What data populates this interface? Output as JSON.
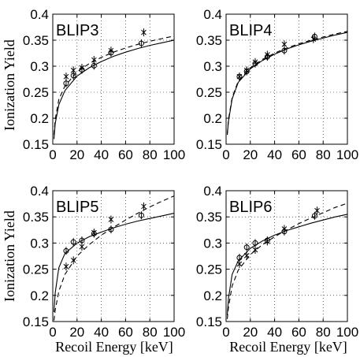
{
  "figure": {
    "ylabel": "Ionization Yield",
    "xlabel": "Recoil Energy [keV]"
  },
  "chart_data": [
    {
      "type": "scatter",
      "title": "BLIP3",
      "xlim": [
        0,
        100
      ],
      "ylim": [
        0.15,
        0.4
      ],
      "xticks": [
        "0",
        "20",
        "40",
        "60",
        "80",
        "100"
      ],
      "yticks": [
        "0.15",
        "0.2",
        "0.25",
        "0.3",
        "0.35",
        "0.4"
      ],
      "xlabel": "",
      "ylabel": "Ionization Yield",
      "grid": true,
      "series": [
        {
          "marker": "circle",
          "points": [
            [
              11,
              0.267
            ],
            [
              17,
              0.282
            ],
            [
              24,
              0.293
            ],
            [
              34,
              0.301
            ],
            [
              48,
              0.326
            ],
            [
              73,
              0.344
            ]
          ]
        },
        {
          "marker": "x",
          "points": [
            [
              11,
              0.28
            ],
            [
              17,
              0.292
            ],
            [
              24,
              0.297
            ],
            [
              34,
              0.312
            ],
            [
              48,
              0.33
            ],
            [
              75,
              0.365
            ]
          ]
        },
        {
          "line": "solid",
          "fit": [
            [
              1,
              0.16
            ],
            [
              2,
              0.19
            ],
            [
              5,
              0.226
            ],
            [
              10,
              0.253
            ],
            [
              20,
              0.281
            ],
            [
              30,
              0.297
            ],
            [
              40,
              0.309
            ],
            [
              50,
              0.319
            ],
            [
              60,
              0.327
            ],
            [
              70,
              0.334
            ],
            [
              80,
              0.34
            ],
            [
              90,
              0.345
            ],
            [
              100,
              0.35
            ]
          ]
        },
        {
          "line": "dashed",
          "fit": [
            [
              1,
              0.168
            ],
            [
              2,
              0.198
            ],
            [
              5,
              0.236
            ],
            [
              10,
              0.262
            ],
            [
              20,
              0.289
            ],
            [
              30,
              0.305
            ],
            [
              40,
              0.317
            ],
            [
              50,
              0.327
            ],
            [
              60,
              0.335
            ],
            [
              70,
              0.342
            ],
            [
              80,
              0.348
            ],
            [
              90,
              0.353
            ],
            [
              100,
              0.358
            ]
          ]
        }
      ]
    },
    {
      "type": "scatter",
      "title": "BLIP4",
      "xlim": [
        0,
        100
      ],
      "ylim": [
        0.15,
        0.4
      ],
      "xticks": [
        "0",
        "20",
        "40",
        "60",
        "80",
        "100"
      ],
      "yticks": [
        "0.15",
        "0.2",
        "0.25",
        "0.3",
        "0.35",
        "0.4"
      ],
      "xlabel": "",
      "ylabel": "",
      "grid": true,
      "series": [
        {
          "marker": "circle",
          "points": [
            [
              11,
              0.28
            ],
            [
              17,
              0.29
            ],
            [
              24,
              0.305
            ],
            [
              34,
              0.318
            ],
            [
              48,
              0.33
            ],
            [
              73,
              0.357
            ]
          ]
        },
        {
          "marker": "x",
          "points": [
            [
              11,
              0.28
            ],
            [
              17,
              0.292
            ],
            [
              24,
              0.308
            ],
            [
              34,
              0.322
            ],
            [
              48,
              0.342
            ],
            [
              72,
              0.352
            ]
          ]
        },
        {
          "line": "solid",
          "fit": [
            [
              1,
              0.168
            ],
            [
              2,
              0.195
            ],
            [
              5,
              0.237
            ],
            [
              10,
              0.269
            ],
            [
              20,
              0.295
            ],
            [
              30,
              0.311
            ],
            [
              40,
              0.323
            ],
            [
              50,
              0.333
            ],
            [
              60,
              0.341
            ],
            [
              70,
              0.348
            ],
            [
              80,
              0.354
            ],
            [
              90,
              0.36
            ],
            [
              100,
              0.365
            ]
          ]
        },
        {
          "line": "dashed",
          "fit": [
            [
              1,
              0.17
            ],
            [
              2,
              0.198
            ],
            [
              5,
              0.24
            ],
            [
              10,
              0.271
            ],
            [
              20,
              0.297
            ],
            [
              30,
              0.313
            ],
            [
              40,
              0.325
            ],
            [
              50,
              0.335
            ],
            [
              60,
              0.343
            ],
            [
              70,
              0.35
            ],
            [
              80,
              0.356
            ],
            [
              90,
              0.362
            ],
            [
              100,
              0.367
            ]
          ]
        }
      ]
    },
    {
      "type": "scatter",
      "title": "BLIP5",
      "xlim": [
        0,
        100
      ],
      "ylim": [
        0.15,
        0.4
      ],
      "xticks": [
        "0",
        "20",
        "40",
        "60",
        "80",
        "100"
      ],
      "yticks": [
        "0.15",
        "0.2",
        "0.25",
        "0.3",
        "0.35",
        "0.4"
      ],
      "xlabel": "Recoil Energy [keV]",
      "ylabel": "Ionization Yield",
      "grid": true,
      "series": [
        {
          "marker": "circle",
          "points": [
            [
              11,
              0.285
            ],
            [
              17,
              0.302
            ],
            [
              24,
              0.305
            ],
            [
              34,
              0.318
            ],
            [
              48,
              0.326
            ],
            [
              73,
              0.353
            ]
          ]
        },
        {
          "marker": "x",
          "points": [
            [
              11,
              0.255
            ],
            [
              17,
              0.267
            ],
            [
              24,
              0.293
            ],
            [
              34,
              0.32
            ],
            [
              48,
              0.345
            ],
            [
              75,
              0.37
            ]
          ]
        },
        {
          "line": "solid",
          "fit": [
            [
              1,
              0.168
            ],
            [
              2,
              0.205
            ],
            [
              5,
              0.253
            ],
            [
              10,
              0.28
            ],
            [
              20,
              0.3
            ],
            [
              30,
              0.312
            ],
            [
              40,
              0.321
            ],
            [
              50,
              0.329
            ],
            [
              60,
              0.336
            ],
            [
              70,
              0.342
            ],
            [
              80,
              0.347
            ],
            [
              90,
              0.352
            ],
            [
              100,
              0.357
            ]
          ]
        },
        {
          "line": "dashed",
          "fit": [
            [
              1,
              0.152
            ],
            [
              2,
              0.172
            ],
            [
              5,
              0.208
            ],
            [
              10,
              0.24
            ],
            [
              20,
              0.275
            ],
            [
              30,
              0.297
            ],
            [
              40,
              0.315
            ],
            [
              50,
              0.33
            ],
            [
              60,
              0.344
            ],
            [
              70,
              0.357
            ],
            [
              80,
              0.369
            ],
            [
              90,
              0.38
            ],
            [
              100,
              0.39
            ]
          ]
        }
      ]
    },
    {
      "type": "scatter",
      "title": "BLIP6",
      "xlim": [
        0,
        100
      ],
      "ylim": [
        0.15,
        0.4
      ],
      "xticks": [
        "0",
        "20",
        "40",
        "60",
        "80",
        "100"
      ],
      "yticks": [
        "0.15",
        "0.2",
        "0.25",
        "0.3",
        "0.35",
        "0.4"
      ],
      "xlabel": "Recoil Energy [keV]",
      "ylabel": "",
      "grid": true,
      "series": [
        {
          "marker": "circle",
          "points": [
            [
              11,
              0.272
            ],
            [
              17,
              0.292
            ],
            [
              24,
              0.3
            ],
            [
              34,
              0.305
            ],
            [
              48,
              0.322
            ],
            [
              73,
              0.352
            ]
          ]
        },
        {
          "marker": "x",
          "points": [
            [
              11,
              0.26
            ],
            [
              17,
              0.276
            ],
            [
              24,
              0.287
            ],
            [
              34,
              0.303
            ],
            [
              48,
              0.327
            ],
            [
              75,
              0.362
            ]
          ]
        },
        {
          "line": "solid",
          "fit": [
            [
              1,
              0.162
            ],
            [
              2,
              0.195
            ],
            [
              5,
              0.24
            ],
            [
              10,
              0.266
            ],
            [
              20,
              0.29
            ],
            [
              30,
              0.304
            ],
            [
              40,
              0.315
            ],
            [
              50,
              0.324
            ],
            [
              60,
              0.331
            ],
            [
              70,
              0.338
            ],
            [
              80,
              0.344
            ],
            [
              90,
              0.35
            ],
            [
              100,
              0.355
            ]
          ]
        },
        {
          "line": "dashed",
          "fit": [
            [
              1,
              0.155
            ],
            [
              2,
              0.178
            ],
            [
              5,
              0.218
            ],
            [
              10,
              0.248
            ],
            [
              20,
              0.278
            ],
            [
              30,
              0.297
            ],
            [
              40,
              0.312
            ],
            [
              50,
              0.325
            ],
            [
              60,
              0.337
            ],
            [
              70,
              0.348
            ],
            [
              80,
              0.358
            ],
            [
              90,
              0.368
            ],
            [
              100,
              0.376
            ]
          ]
        }
      ]
    }
  ]
}
